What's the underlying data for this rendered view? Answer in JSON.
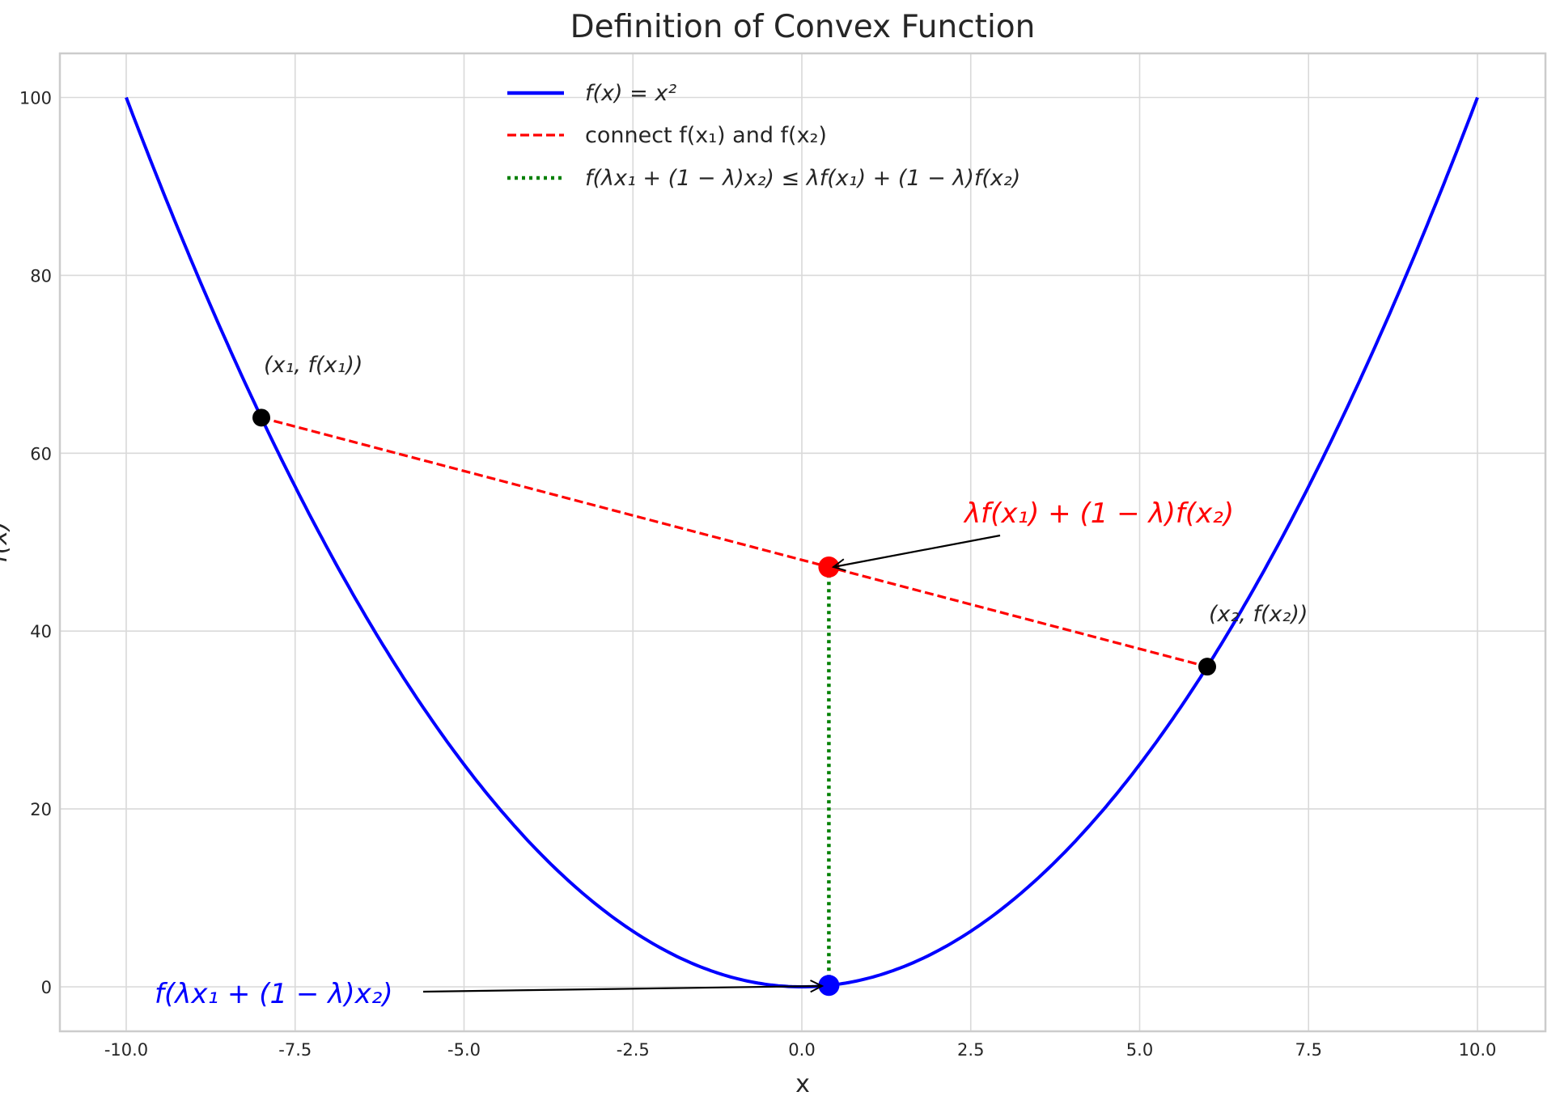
{
  "chart_data": {
    "type": "line",
    "title": "Definition of Convex Function",
    "xlabel": "x",
    "ylabel": "f(x)",
    "xlim": [
      -11,
      11
    ],
    "ylim": [
      -5,
      105
    ],
    "grid": true,
    "xticks": [
      "-10.0",
      "-7.5",
      "-5.0",
      "-2.5",
      "0.0",
      "2.5",
      "5.0",
      "7.5",
      "10.0"
    ],
    "xtick_values": [
      -10,
      -7.5,
      -5,
      -2.5,
      0,
      2.5,
      5,
      7.5,
      10
    ],
    "yticks": [
      "0",
      "20",
      "40",
      "60",
      "80",
      "100"
    ],
    "ytick_values": [
      0,
      20,
      40,
      60,
      80,
      100
    ],
    "legend_position": "top-center",
    "series": [
      {
        "name": "f(x) = x²",
        "function": "x^2",
        "x_range": [
          -10,
          10
        ],
        "color": "#0000ff",
        "style": "solid"
      },
      {
        "name": "connect f(x₁) and f(x₂)",
        "x": [
          -8,
          6
        ],
        "y": [
          64,
          36
        ],
        "color": "#ff0000",
        "style": "dashed"
      },
      {
        "name": "f(λx₁ + (1 − λ)x₂) ≤ λf(x₁) + (1 − λ)f(x₂)",
        "x": [
          0.4,
          0.4
        ],
        "y": [
          0.16,
          47.2
        ],
        "color": "#008000",
        "style": "dotted"
      }
    ],
    "points": [
      {
        "x": -8,
        "y": 64,
        "color": "#000000",
        "label": "(x₁, f(x₁))"
      },
      {
        "x": 6,
        "y": 36,
        "color": "#000000",
        "label": "(x₂, f(x₂))"
      },
      {
        "x": 0.4,
        "y": 47.2,
        "color": "#ff0000"
      },
      {
        "x": 0.4,
        "y": 0.16,
        "color": "#0000ff"
      }
    ],
    "annotations": [
      {
        "text": "λf(x₁) + (1 − λ)f(x₂)",
        "color": "#ff0000",
        "target": [
          0.4,
          47.2
        ]
      },
      {
        "text": "f(λx₁ + (1 − λ)x₂)",
        "color": "#0000ff",
        "target": [
          0.4,
          0.16
        ]
      }
    ]
  }
}
